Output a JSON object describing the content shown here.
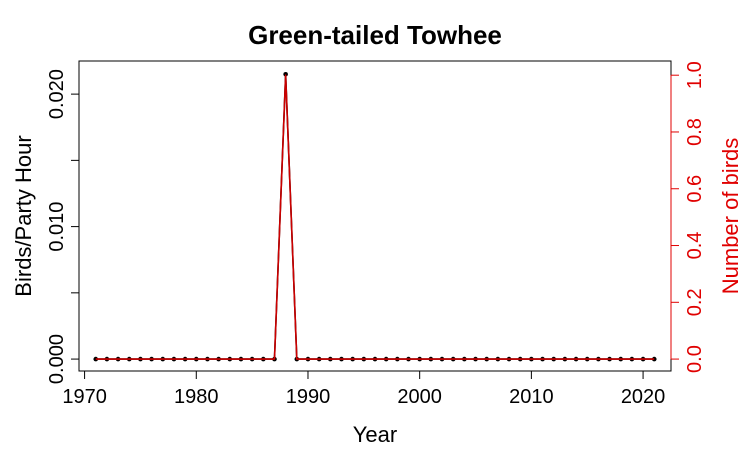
{
  "colors": {
    "primary_axis": "#000000",
    "secondary_axis": "#e00000",
    "line_black": "#000000",
    "line_red": "#cc0000"
  },
  "chart_data": {
    "type": "line",
    "title": "Green-tailed Towhee",
    "xlabel": "Year",
    "ylabel": "Birds/Party Hour",
    "y2label": "Number of birds",
    "xlim": [
      1969.5,
      2022.5
    ],
    "ylim": [
      -0.0009,
      0.0225
    ],
    "y2lim": [
      -0.042,
      1.05
    ],
    "x_ticks": [
      1970,
      1980,
      1990,
      2000,
      2010,
      2020
    ],
    "x_tick_labels": [
      "1970",
      "1980",
      "1990",
      "2000",
      "2010",
      "2020"
    ],
    "y_ticks": [
      0.0,
      0.005,
      0.01,
      0.015,
      0.02
    ],
    "y_tick_labels": [
      "0.000",
      "",
      "0.010",
      "",
      "0.020"
    ],
    "y2_ticks": [
      0.0,
      0.2,
      0.4,
      0.6,
      0.8,
      1.0
    ],
    "y2_tick_labels": [
      "0.0",
      "0.2",
      "0.4",
      "0.6",
      "0.8",
      "1.0"
    ],
    "grid": false,
    "series": [
      {
        "axis": "left",
        "color": "#000000",
        "markers": true,
        "x": [
          1971,
          1972,
          1973,
          1974,
          1975,
          1976,
          1977,
          1978,
          1979,
          1980,
          1981,
          1982,
          1983,
          1984,
          1985,
          1986,
          1987,
          1988,
          1989,
          1990,
          1991,
          1992,
          1993,
          1994,
          1995,
          1996,
          1997,
          1998,
          1999,
          2000,
          2001,
          2002,
          2003,
          2004,
          2005,
          2006,
          2007,
          2008,
          2009,
          2010,
          2011,
          2012,
          2013,
          2014,
          2015,
          2016,
          2017,
          2018,
          2019,
          2020,
          2021
        ],
        "values": [
          0,
          0,
          0,
          0,
          0,
          0,
          0,
          0,
          0,
          0,
          0,
          0,
          0,
          0,
          0,
          0,
          0,
          0.0215,
          0,
          0,
          0,
          0,
          0,
          0,
          0,
          0,
          0,
          0,
          0,
          0,
          0,
          0,
          0,
          0,
          0,
          0,
          0,
          0,
          0,
          0,
          0,
          0,
          0,
          0,
          0,
          0,
          0,
          0,
          0,
          0,
          0
        ]
      },
      {
        "axis": "right",
        "color": "#cc0000",
        "markers": false,
        "x": [
          1971,
          1972,
          1973,
          1974,
          1975,
          1976,
          1977,
          1978,
          1979,
          1980,
          1981,
          1982,
          1983,
          1984,
          1985,
          1986,
          1987,
          1988,
          1989,
          1990,
          1991,
          1992,
          1993,
          1994,
          1995,
          1996,
          1997,
          1998,
          1999,
          2000,
          2001,
          2002,
          2003,
          2004,
          2005,
          2006,
          2007,
          2008,
          2009,
          2010,
          2011,
          2012,
          2013,
          2014,
          2015,
          2016,
          2017,
          2018,
          2019,
          2020,
          2021
        ],
        "values": [
          0,
          0,
          0,
          0,
          0,
          0,
          0,
          0,
          0,
          0,
          0,
          0,
          0,
          0,
          0,
          0,
          0,
          1,
          0,
          0,
          0,
          0,
          0,
          0,
          0,
          0,
          0,
          0,
          0,
          0,
          0,
          0,
          0,
          0,
          0,
          0,
          0,
          0,
          0,
          0,
          0,
          0,
          0,
          0,
          0,
          0,
          0,
          0,
          0,
          0,
          0
        ]
      }
    ]
  }
}
